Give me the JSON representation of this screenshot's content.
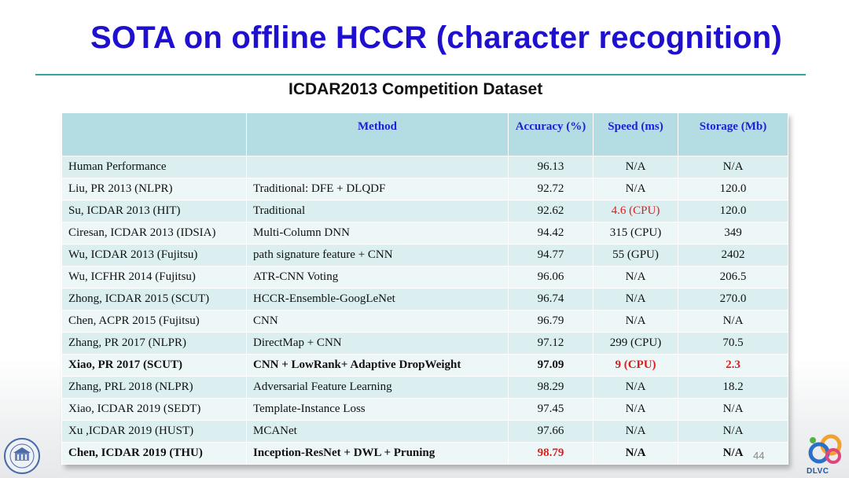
{
  "title": "SOTA on offline HCCR (character recognition)",
  "subtitle": "ICDAR2013 Competition Dataset",
  "table": {
    "headers": [
      "",
      "Method",
      "Accuracy (%)",
      "Speed (ms)",
      "Storage (Mb)"
    ],
    "rows": [
      {
        "ref": "Human Performance",
        "method": "",
        "accuracy": "96.13",
        "speed": "N/A",
        "storage": "N/A"
      },
      {
        "ref": "Liu, PR 2013 (NLPR)",
        "method": "Traditional: DFE + DLQDF",
        "accuracy": "92.72",
        "speed": "N/A",
        "storage": "120.0"
      },
      {
        "ref": "Su, ICDAR 2013 (HIT)",
        "method": "Traditional",
        "accuracy": "92.62",
        "speed": "4.6 (CPU)",
        "storage": "120.0"
      },
      {
        "ref": "Ciresan, ICDAR 2013 (IDSIA)",
        "method": "Multi-Column DNN",
        "accuracy": "94.42",
        "speed": "315 (CPU)",
        "storage": "349"
      },
      {
        "ref": "Wu, ICDAR 2013 (Fujitsu)",
        "method": "path signature feature + CNN",
        "accuracy": "94.77",
        "speed": "55 (GPU)",
        "storage": "2402"
      },
      {
        "ref": "Wu, ICFHR 2014 (Fujitsu)",
        "method": "ATR-CNN Voting",
        "accuracy": "96.06",
        "speed": "N/A",
        "storage": "206.5"
      },
      {
        "ref": "Zhong, ICDAR 2015 (SCUT)",
        "method": "HCCR-Ensemble-GoogLeNet",
        "accuracy": "96.74",
        "speed": "N/A",
        "storage": "270.0"
      },
      {
        "ref": "Chen, ACPR 2015 (Fujitsu)",
        "method": "CNN",
        "accuracy": "96.79",
        "speed": "N/A",
        "storage": "N/A"
      },
      {
        "ref": "Zhang, PR 2017 (NLPR)",
        "method": "DirectMap + CNN",
        "accuracy": "97.12",
        "speed": "299 (CPU)",
        "storage": "70.5"
      },
      {
        "ref": "Xiao, PR 2017 (SCUT)",
        "method": "CNN + LowRank+ Adaptive DropWeight",
        "accuracy": "97.09",
        "speed": "9  (CPU)",
        "storage": "2.3"
      },
      {
        "ref": "Zhang, PRL 2018 (NLPR)",
        "method": "Adversarial Feature Learning",
        "accuracy": "98.29",
        "speed": "N/A",
        "storage": "18.2"
      },
      {
        "ref": "Xiao, ICDAR 2019 (SEDT)",
        "method": "Template-Instance Loss",
        "accuracy": "97.45",
        "speed": "N/A",
        "storage": "N/A"
      },
      {
        "ref": "Xu ,ICDAR 2019 (HUST)",
        "method": "MCANet",
        "accuracy": "97.66",
        "speed": "N/A",
        "storage": "N/A"
      },
      {
        "ref": "Chen, ICDAR 2019 (THU)",
        "method": "Inception-ResNet + DWL + Pruning",
        "accuracy": "98.79",
        "speed": "N/A",
        "storage": "N/A"
      }
    ]
  },
  "logo_text": "DLVC",
  "page_number": "44",
  "colors": {
    "title": "#1f10cf",
    "header_text": "#1e1ed6",
    "highlight": "#e01b1b",
    "rule": "#39a3a0"
  }
}
